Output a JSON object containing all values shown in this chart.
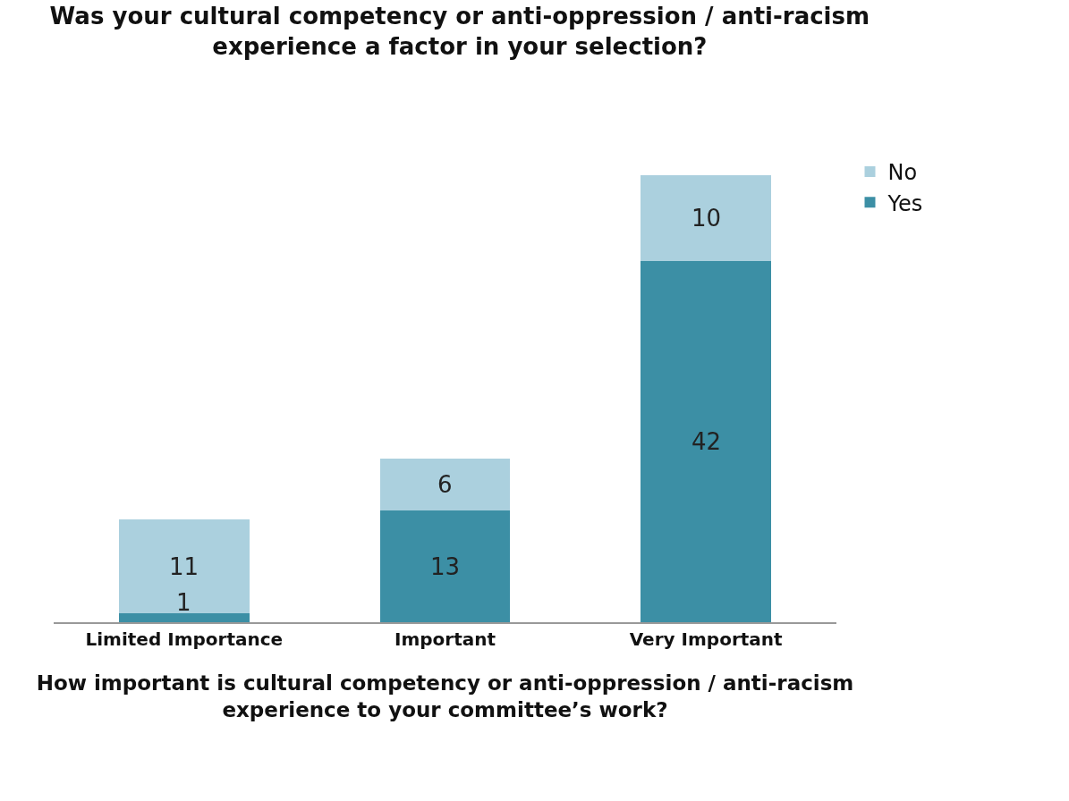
{
  "chart_data": {
    "type": "bar",
    "title": "Was your cultural competency or anti-oppression / anti-racism experience a factor in your selection?",
    "xlabel": "How important is cultural competency or anti-oppression / anti-racism experience to your committee’s work?",
    "categories": [
      "Limited Importance",
      "Important",
      "Very Important"
    ],
    "stacked": true,
    "data_labels": true,
    "tick_labels": "x",
    "legend": "right",
    "series": [
      {
        "name": "Yes",
        "color": "#3c8fa5",
        "values": [
          1,
          13,
          42
        ]
      },
      {
        "name": "No",
        "color": "#abd0de",
        "values": [
          11,
          6,
          10
        ]
      }
    ]
  }
}
